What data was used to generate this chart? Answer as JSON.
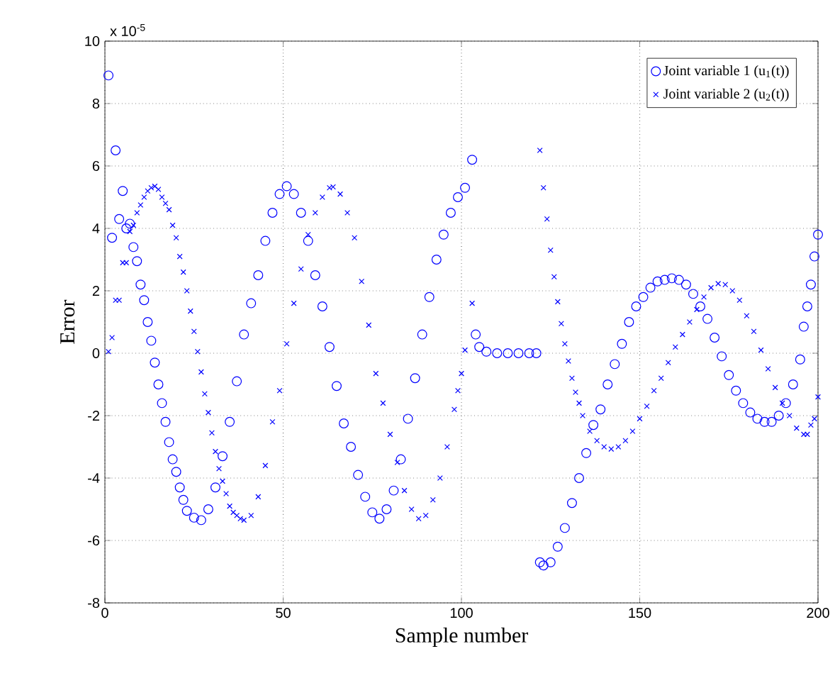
{
  "chart_data": {
    "type": "scatter",
    "xlabel": "Sample number",
    "ylabel": "Error",
    "annotations": [
      "x 10$^{-5}$"
    ],
    "xlim": [
      0,
      200
    ],
    "xticks": [
      0,
      50,
      100,
      150,
      200
    ],
    "ylim": [
      -8,
      10
    ],
    "yticks": [
      -8,
      -6,
      -4,
      -2,
      0,
      2,
      4,
      6,
      8,
      10
    ],
    "grid": true,
    "legend": "top right",
    "series": [
      {
        "name": "Joint variable 1 (u$_{1}$(t))",
        "color": "#0000ff",
        "marker": "circle",
        "x": [
          1,
          2,
          3,
          4,
          5,
          6,
          7,
          8,
          9,
          10,
          11,
          12,
          13,
          14,
          15,
          16,
          17,
          18,
          19,
          20,
          21,
          22,
          23,
          25,
          27,
          29,
          31,
          33,
          35,
          37,
          39,
          41,
          43,
          45,
          47,
          49,
          51,
          53,
          55,
          57,
          59,
          61,
          63,
          65,
          67,
          69,
          71,
          73,
          75,
          77,
          79,
          81,
          83,
          85,
          87,
          89,
          91,
          93,
          95,
          97,
          99,
          101,
          103,
          104,
          105,
          107,
          110,
          113,
          116,
          119,
          121,
          122,
          123,
          125,
          127,
          129,
          131,
          133,
          135,
          137,
          139,
          141,
          143,
          145,
          147,
          149,
          151,
          153,
          155,
          157,
          159,
          161,
          163,
          165,
          167,
          169,
          171,
          173,
          175,
          177,
          179,
          181,
          183,
          185,
          187,
          189,
          191,
          193,
          195,
          196,
          197,
          198,
          199,
          200
        ],
        "values": [
          8.9,
          3.7,
          6.5,
          4.3,
          5.2,
          4.0,
          4.15,
          3.4,
          2.95,
          2.2,
          1.7,
          1.0,
          0.4,
          -0.3,
          -1.0,
          -1.6,
          -2.2,
          -2.85,
          -3.4,
          -3.8,
          -4.3,
          -4.7,
          -5.05,
          -5.27,
          -5.35,
          -5.0,
          -4.3,
          -3.3,
          -2.2,
          -0.9,
          0.6,
          1.6,
          2.5,
          3.6,
          4.5,
          5.1,
          5.35,
          5.1,
          4.5,
          3.6,
          2.5,
          1.5,
          0.2,
          -1.05,
          -2.25,
          -3.0,
          -3.9,
          -4.6,
          -5.1,
          -5.3,
          -5.0,
          -4.4,
          -3.4,
          -2.1,
          -0.8,
          0.6,
          1.8,
          3.0,
          3.8,
          4.5,
          5.0,
          5.3,
          6.2,
          0.6,
          0.2,
          0.05,
          0,
          0,
          0,
          0,
          0,
          -6.7,
          -6.8,
          -6.7,
          -6.2,
          -5.6,
          -4.8,
          -4.0,
          -3.2,
          -2.3,
          -1.8,
          -1.0,
          -0.35,
          0.3,
          1.0,
          1.5,
          1.8,
          2.1,
          2.3,
          2.35,
          2.4,
          2.35,
          2.2,
          1.9,
          1.5,
          1.1,
          0.5,
          -0.1,
          -0.7,
          -1.2,
          -1.6,
          -1.9,
          -2.1,
          -2.2,
          -2.2,
          -2.0,
          -1.6,
          -1.0,
          -0.2,
          0.85,
          1.5,
          2.2,
          3.1,
          3.8
        ]
      },
      {
        "name": "Joint variable 2 (u$_{2}$(t))",
        "color": "#0000ff",
        "marker": "cross",
        "x": [
          1,
          2,
          3,
          4,
          5,
          6,
          7,
          8,
          9,
          10,
          11,
          12,
          13,
          14,
          15,
          16,
          17,
          18,
          19,
          20,
          21,
          22,
          23,
          24,
          25,
          26,
          27,
          28,
          29,
          30,
          31,
          32,
          33,
          34,
          35,
          36,
          37,
          38,
          39,
          41,
          43,
          45,
          47,
          49,
          51,
          53,
          55,
          57,
          59,
          61,
          63,
          64,
          66,
          68,
          70,
          72,
          74,
          76,
          78,
          80,
          82,
          84,
          86,
          88,
          90,
          92,
          94,
          96,
          98,
          99,
          100,
          101,
          103,
          122,
          123,
          124,
          125,
          126,
          127,
          128,
          129,
          130,
          131,
          132,
          133,
          134,
          136,
          138,
          140,
          142,
          144,
          146,
          148,
          150,
          152,
          154,
          156,
          158,
          160,
          162,
          164,
          166,
          168,
          170,
          172,
          174,
          176,
          178,
          180,
          182,
          184,
          186,
          188,
          190,
          192,
          194,
          196,
          197,
          198,
          199,
          200
        ],
        "values": [
          0.05,
          0.5,
          1.7,
          1.7,
          2.9,
          2.9,
          3.9,
          4.1,
          4.5,
          4.75,
          5.0,
          5.2,
          5.3,
          5.35,
          5.25,
          5.0,
          4.8,
          4.6,
          4.1,
          3.7,
          3.1,
          2.6,
          2.0,
          1.35,
          0.7,
          0.05,
          -0.6,
          -1.3,
          -1.9,
          -2.55,
          -3.15,
          -3.7,
          -4.1,
          -4.5,
          -4.9,
          -5.1,
          -5.2,
          -5.3,
          -5.35,
          -5.2,
          -4.6,
          -3.6,
          -2.2,
          -1.2,
          0.3,
          1.6,
          2.7,
          3.8,
          4.5,
          5.0,
          5.3,
          5.33,
          5.1,
          4.5,
          3.7,
          2.3,
          0.9,
          -0.65,
          -1.6,
          -2.6,
          -3.5,
          -4.4,
          -5.0,
          -5.3,
          -5.2,
          -4.7,
          -4.0,
          -3.0,
          -1.8,
          -1.2,
          -0.65,
          0.1,
          1.6,
          6.5,
          5.3,
          4.3,
          3.3,
          2.45,
          1.65,
          0.95,
          0.3,
          -0.25,
          -0.8,
          -1.25,
          -1.6,
          -2.0,
          -2.5,
          -2.8,
          -3.0,
          -3.07,
          -3.0,
          -2.8,
          -2.5,
          -2.1,
          -1.7,
          -1.2,
          -0.8,
          -0.3,
          0.2,
          0.6,
          1.0,
          1.4,
          1.8,
          2.1,
          2.23,
          2.2,
          2.0,
          1.7,
          1.2,
          0.7,
          0.1,
          -0.5,
          -1.1,
          -1.6,
          -2.0,
          -2.4,
          -2.6,
          -2.6,
          -2.3,
          -2.1,
          -1.4
        ]
      }
    ]
  }
}
